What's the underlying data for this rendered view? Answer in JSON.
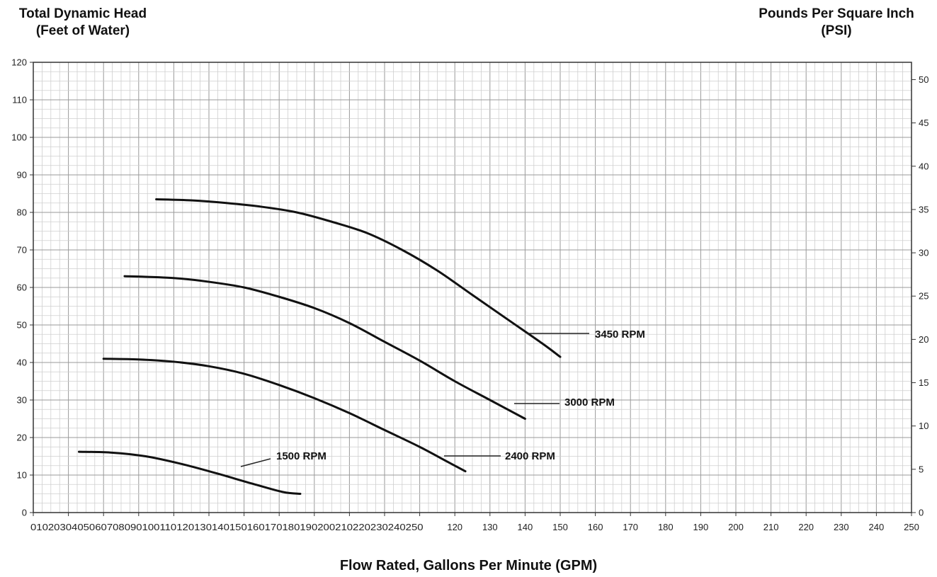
{
  "left_axis_title": [
    "Total Dynamic Head",
    "(Feet of Water)"
  ],
  "right_axis_title": [
    "Pounds Per Square Inch",
    "(PSI)"
  ],
  "x_axis_title": "Flow Rated, Gallons Per Minute (GPM)",
  "chart_data": {
    "type": "line",
    "title": "",
    "xlabel": "Flow Rated, Gallons Per Minute (GPM)",
    "ylabel": "Total Dynamic Head (Feet of Water)",
    "y2label": "Pounds Per Square Inch (PSI)",
    "xlim": [
      0,
      250
    ],
    "ylim": [
      0,
      120
    ],
    "y2lim": [
      0,
      52
    ],
    "grid": true,
    "x_ticks": [
      "0",
      "10",
      "20",
      "30",
      "40",
      "50",
      "60",
      "70",
      "80",
      "90",
      "100",
      "110",
      "120",
      "130",
      "140",
      "150",
      "160",
      "170",
      "180",
      "190",
      "200",
      "210",
      "220",
      "230",
      "240",
      "250"
    ],
    "x_ticks_rendered_text": "0102030405060708090100110120130140150160170180190200210220230240250",
    "x_ticks_clean": [
      "120",
      "130",
      "140",
      "150",
      "160",
      "170",
      "180",
      "190",
      "200",
      "210",
      "220",
      "230",
      "240",
      "250"
    ],
    "y_ticks": [
      "0",
      "10",
      "20",
      "30",
      "40",
      "50",
      "60",
      "70",
      "80",
      "90",
      "100",
      "110",
      "120"
    ],
    "y2_ticks": [
      "0",
      "5",
      "10",
      "15",
      "20",
      "25",
      "30",
      "35",
      "40",
      "45",
      "50"
    ],
    "series": [
      {
        "name": "1500 RPM",
        "x": [
          13,
          22,
          32,
          42,
          52,
          62,
          71,
          76
        ],
        "y": [
          16.2,
          16.0,
          15.0,
          13.0,
          10.5,
          7.8,
          5.5,
          5.0
        ]
      },
      {
        "name": "2400 RPM",
        "x": [
          20,
          30,
          40,
          50,
          60,
          70,
          80,
          90,
          100,
          110,
          118,
          123
        ],
        "y": [
          41,
          40.8,
          40.2,
          39.0,
          37.0,
          34.0,
          30.5,
          26.5,
          22.0,
          17.5,
          13.5,
          11
        ]
      },
      {
        "name": "3000 RPM",
        "x": [
          26,
          40,
          50,
          60,
          70,
          80,
          90,
          100,
          110,
          120,
          130,
          140
        ],
        "y": [
          63,
          62.5,
          61.5,
          60.0,
          57.5,
          54.5,
          50.5,
          45.5,
          40.5,
          35.0,
          30.0,
          25
        ]
      },
      {
        "name": "3450 RPM",
        "x": [
          35,
          45,
          55,
          65,
          75,
          85,
          95,
          105,
          115,
          125,
          135,
          145,
          150
        ],
        "y": [
          83.5,
          83.2,
          82.5,
          81.5,
          80.0,
          77.5,
          74.5,
          70.0,
          64.5,
          58.0,
          51.5,
          45.0,
          41.5
        ]
      }
    ],
    "labels": [
      {
        "text": "1500 RPM",
        "series": "1500 RPM"
      },
      {
        "text": "2400 RPM",
        "series": "2400 RPM"
      },
      {
        "text": "3000 RPM",
        "series": "3000 RPM"
      },
      {
        "text": "3450 RPM",
        "series": "3450 RPM"
      }
    ]
  }
}
